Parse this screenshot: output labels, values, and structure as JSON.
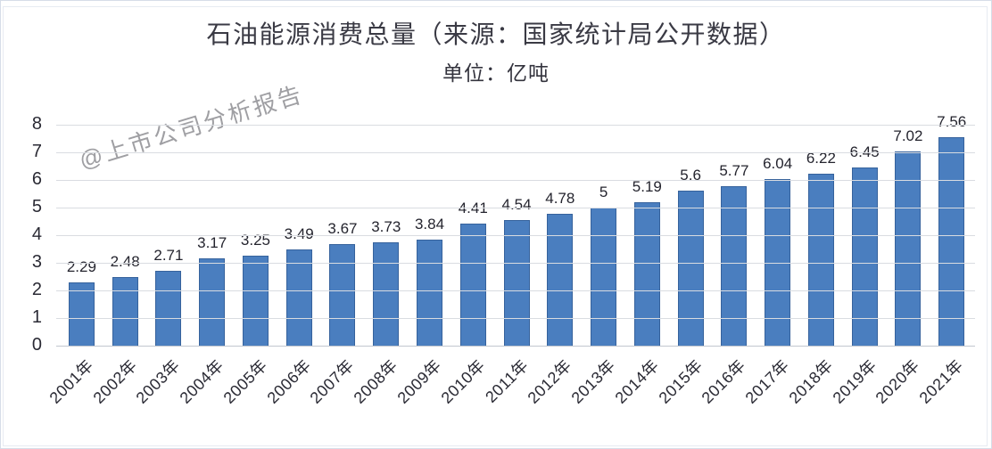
{
  "chart_data": {
    "type": "bar",
    "title": "石油能源消费总量（来源：国家统计局公开数据）",
    "subtitle": "单位：亿吨",
    "watermark": "@上市公司分析报告",
    "categories": [
      "2001年",
      "2002年",
      "2003年",
      "2004年",
      "2005年",
      "2006年",
      "2007年",
      "2008年",
      "2009年",
      "2010年",
      "2011年",
      "2012年",
      "2013年",
      "2014年",
      "2015年",
      "2016年",
      "2017年",
      "2018年",
      "2019年",
      "2020年",
      "2021年"
    ],
    "values": [
      2.29,
      2.48,
      2.71,
      3.17,
      3.25,
      3.49,
      3.67,
      3.73,
      3.84,
      4.41,
      4.54,
      4.78,
      5,
      5.19,
      5.6,
      5.77,
      6.04,
      6.22,
      6.45,
      7.02,
      7.56
    ],
    "value_labels": [
      "2.29",
      "2.48",
      "2.71",
      "3.17",
      "3.25",
      "3.49",
      "3.67",
      "3.73",
      "3.84",
      "4.41",
      "4.54",
      "4.78",
      "5",
      "5.19",
      "5.6",
      "5.77",
      "6.04",
      "6.22",
      "6.45",
      "7.02",
      "7.56"
    ],
    "xlabel": "",
    "ylabel": "",
    "ylim": [
      0,
      8
    ],
    "yticks": [
      0,
      1,
      2,
      3,
      4,
      5,
      6,
      7,
      8
    ],
    "grid": true,
    "legend_position": "none",
    "colors": {
      "bar": "#4a7ebf",
      "bar_border": "#36629c",
      "gridline": "#d9dce1",
      "text": "#24242e",
      "watermark": "#8f8f93",
      "background": "#ffffff"
    }
  }
}
